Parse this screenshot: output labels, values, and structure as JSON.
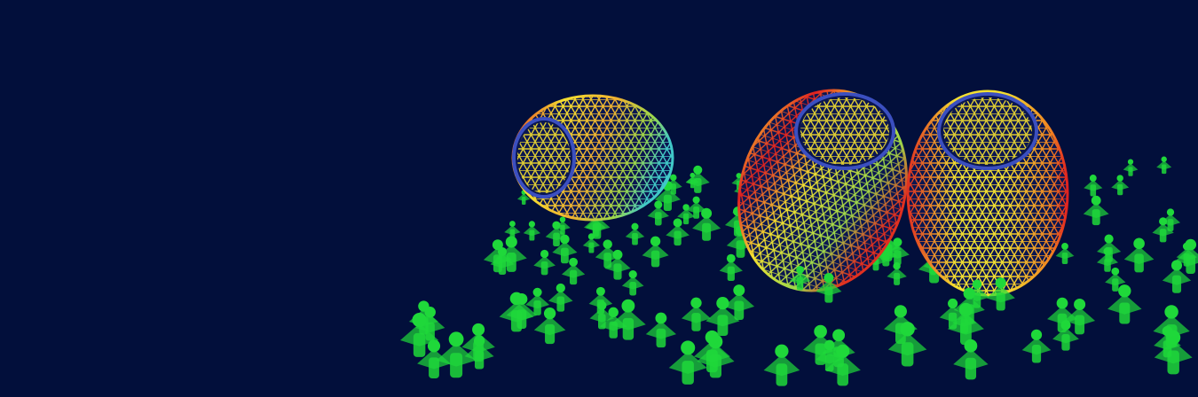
{
  "scene": {
    "background_color": "#020f3b",
    "figure_color": "#1fd83a",
    "mesh_colors": [
      "#e02020",
      "#f5e030",
      "#9cd84a",
      "#40c8c8",
      "#2a2f9a"
    ],
    "objects": [
      "wireframe-vessel",
      "wireframe-vessel",
      "wireframe-vessel"
    ]
  }
}
